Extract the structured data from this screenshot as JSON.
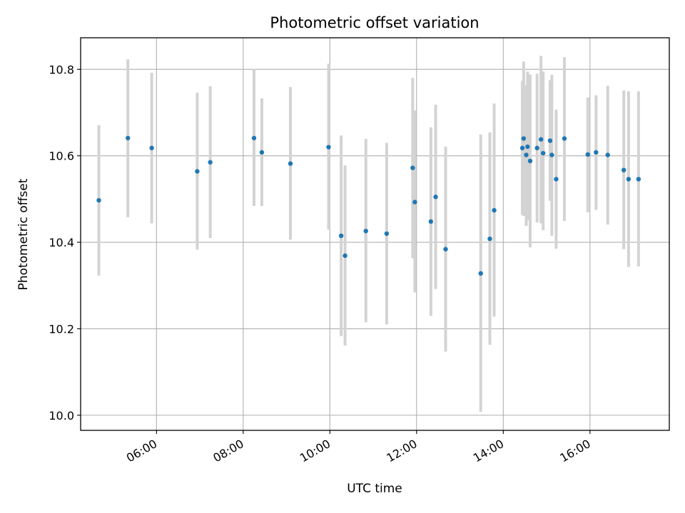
{
  "chart_data": {
    "type": "scatter",
    "title": "Photometric offset variation",
    "xlabel": "UTC time",
    "ylabel": "Photometric offset",
    "x_unit": "hours UTC",
    "xlim": [
      4.25,
      17.83
    ],
    "ylim": [
      9.965,
      10.873
    ],
    "x_ticks": [
      {
        "value": 6,
        "label": "06:00"
      },
      {
        "value": 8,
        "label": "08:00"
      },
      {
        "value": 10,
        "label": "10:00"
      },
      {
        "value": 12,
        "label": "12:00"
      },
      {
        "value": 14,
        "label": "14:00"
      },
      {
        "value": 16,
        "label": "16:00"
      }
    ],
    "y_ticks": [
      {
        "value": 10.0,
        "label": "10.0"
      },
      {
        "value": 10.2,
        "label": "10.2"
      },
      {
        "value": 10.4,
        "label": "10.4"
      },
      {
        "value": 10.6,
        "label": "10.6"
      },
      {
        "value": 10.8,
        "label": "10.8"
      }
    ],
    "grid": true,
    "colors": {
      "point": "#1f77b4",
      "errorbar": "#d3d3d3",
      "grid": "#b0b0b0"
    },
    "points": [
      {
        "x": 4.67,
        "y": 10.497,
        "low": 10.323,
        "high": 10.671
      },
      {
        "x": 5.34,
        "y": 10.641,
        "low": 10.458,
        "high": 10.823
      },
      {
        "x": 5.89,
        "y": 10.618,
        "low": 10.444,
        "high": 10.792
      },
      {
        "x": 6.94,
        "y": 10.564,
        "low": 10.383,
        "high": 10.746
      },
      {
        "x": 7.24,
        "y": 10.585,
        "low": 10.41,
        "high": 10.761
      },
      {
        "x": 8.25,
        "y": 10.641,
        "low": 10.484,
        "high": 10.8
      },
      {
        "x": 8.43,
        "y": 10.608,
        "low": 10.484,
        "high": 10.733
      },
      {
        "x": 9.09,
        "y": 10.582,
        "low": 10.406,
        "high": 10.759
      },
      {
        "x": 9.97,
        "y": 10.62,
        "low": 10.429,
        "high": 10.813
      },
      {
        "x": 10.26,
        "y": 10.415,
        "low": 10.183,
        "high": 10.647
      },
      {
        "x": 10.35,
        "y": 10.369,
        "low": 10.161,
        "high": 10.578
      },
      {
        "x": 10.83,
        "y": 10.426,
        "low": 10.215,
        "high": 10.639
      },
      {
        "x": 11.31,
        "y": 10.42,
        "low": 10.21,
        "high": 10.63
      },
      {
        "x": 11.91,
        "y": 10.572,
        "low": 10.363,
        "high": 10.78
      },
      {
        "x": 11.96,
        "y": 10.493,
        "low": 10.284,
        "high": 10.705
      },
      {
        "x": 12.33,
        "y": 10.448,
        "low": 10.23,
        "high": 10.666
      },
      {
        "x": 12.44,
        "y": 10.505,
        "low": 10.292,
        "high": 10.718
      },
      {
        "x": 12.67,
        "y": 10.384,
        "low": 10.147,
        "high": 10.621
      },
      {
        "x": 13.48,
        "y": 10.328,
        "low": 10.008,
        "high": 10.649
      },
      {
        "x": 13.69,
        "y": 10.408,
        "low": 10.163,
        "high": 10.654
      },
      {
        "x": 13.79,
        "y": 10.474,
        "low": 10.228,
        "high": 10.721
      },
      {
        "x": 14.44,
        "y": 10.618,
        "low": 10.464,
        "high": 10.773
      },
      {
        "x": 14.47,
        "y": 10.64,
        "low": 10.461,
        "high": 10.818
      },
      {
        "x": 14.53,
        "y": 10.602,
        "low": 10.438,
        "high": 10.763
      },
      {
        "x": 14.56,
        "y": 10.621,
        "low": 10.451,
        "high": 10.795
      },
      {
        "x": 14.62,
        "y": 10.588,
        "low": 10.388,
        "high": 10.788
      },
      {
        "x": 14.78,
        "y": 10.618,
        "low": 10.446,
        "high": 10.79
      },
      {
        "x": 14.87,
        "y": 10.638,
        "low": 10.444,
        "high": 10.831
      },
      {
        "x": 14.92,
        "y": 10.606,
        "low": 10.428,
        "high": 10.795
      },
      {
        "x": 15.08,
        "y": 10.635,
        "low": 10.496,
        "high": 10.775
      },
      {
        "x": 15.12,
        "y": 10.602,
        "low": 10.415,
        "high": 10.787
      },
      {
        "x": 15.22,
        "y": 10.546,
        "low": 10.385,
        "high": 10.707
      },
      {
        "x": 15.41,
        "y": 10.64,
        "low": 10.449,
        "high": 10.828
      },
      {
        "x": 15.95,
        "y": 10.603,
        "low": 10.469,
        "high": 10.735
      },
      {
        "x": 16.14,
        "y": 10.608,
        "low": 10.475,
        "high": 10.74
      },
      {
        "x": 16.41,
        "y": 10.602,
        "low": 10.441,
        "high": 10.762
      },
      {
        "x": 16.78,
        "y": 10.567,
        "low": 10.384,
        "high": 10.751
      },
      {
        "x": 16.89,
        "y": 10.546,
        "low": 10.343,
        "high": 10.749
      },
      {
        "x": 17.12,
        "y": 10.546,
        "low": 10.344,
        "high": 10.749
      }
    ]
  }
}
